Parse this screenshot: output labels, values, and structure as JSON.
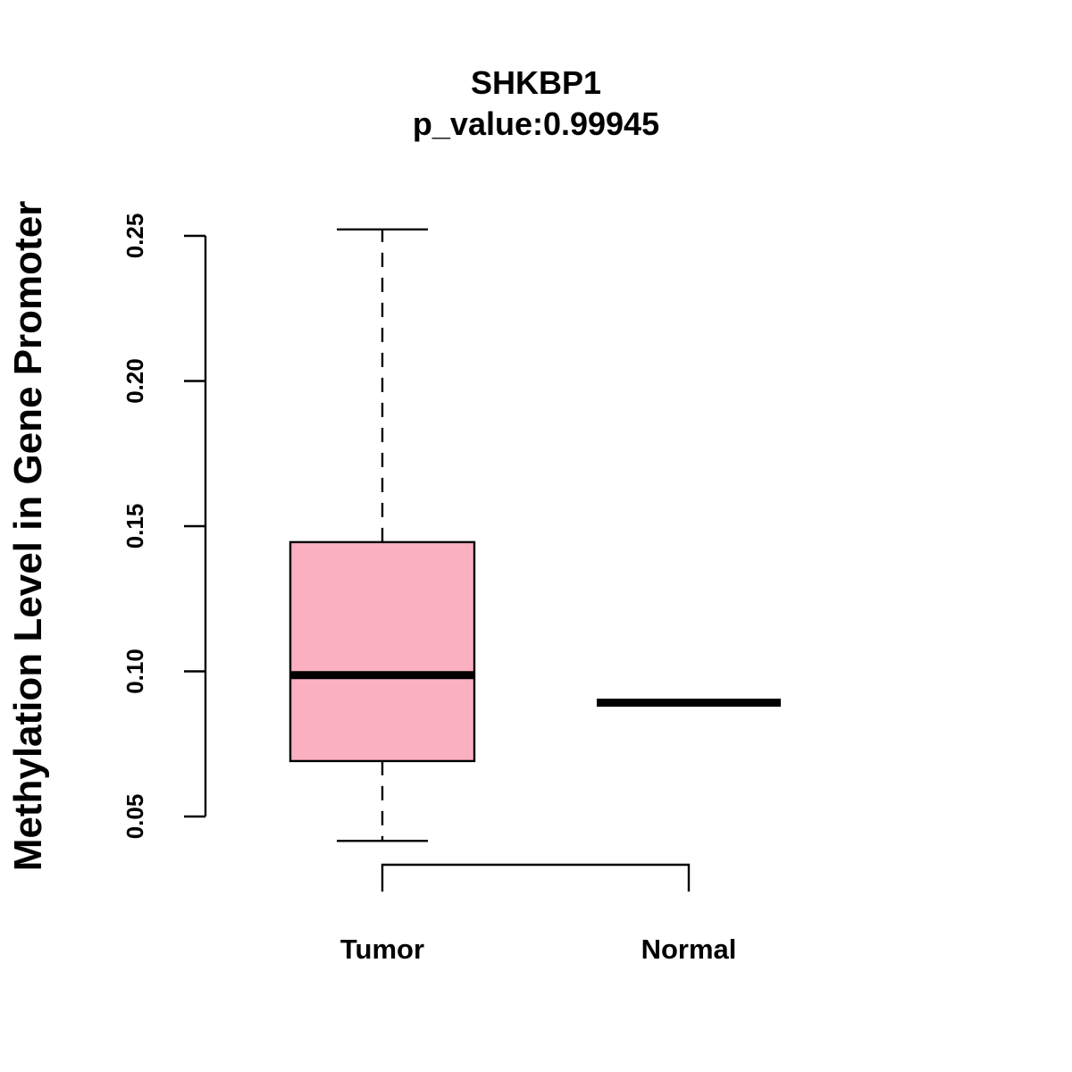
{
  "chart_data": {
    "type": "box",
    "title": "SHKBP1",
    "subtitle": "p_value:0.99945",
    "xlabel": "",
    "ylabel": "Methylation Level in Gene Promoter",
    "ylim": [
      0.05,
      0.25
    ],
    "yticks": [
      0.05,
      0.1,
      0.15,
      0.2,
      0.25
    ],
    "ytick_labels": [
      "0.05",
      "0.10",
      "0.15",
      "0.20",
      "0.25"
    ],
    "grid": false,
    "categories": [
      "Tumor",
      "Normal"
    ],
    "boxes": [
      {
        "name": "Tumor",
        "whisker_low": 0.0416,
        "q1": 0.0691,
        "median": 0.0987,
        "q3": 0.1445,
        "whisker_high": 0.2522,
        "color": "#FBB0C2"
      },
      {
        "name": "Normal",
        "whisker_low": 0.0892,
        "q1": 0.0892,
        "median": 0.0892,
        "q3": 0.0892,
        "whisker_high": 0.0892,
        "color": "#FBB0C2"
      }
    ],
    "comparison_bracket": [
      "Tumor",
      "Normal"
    ]
  }
}
